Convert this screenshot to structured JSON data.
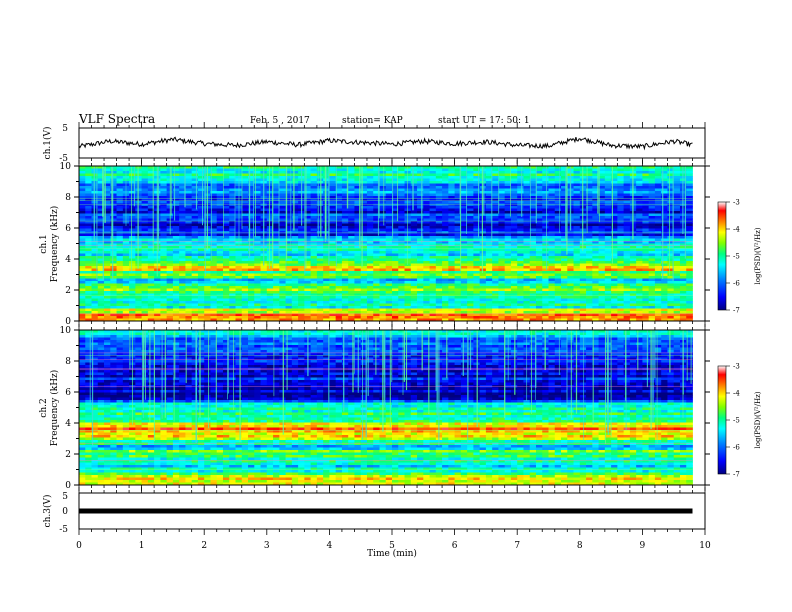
{
  "header": {
    "title": "VLF Spectra",
    "date": "Feb. 5 , 2017",
    "station": "station= KAP",
    "start": "start  UT =   17: 50: 1"
  },
  "colors": {
    "spectrogram_colormap": [
      "#000080",
      "#0000ff",
      "#0080ff",
      "#00ffff",
      "#00ff80",
      "#80ff00",
      "#ffff00",
      "#ff8000",
      "#ff0000",
      "#ffffff"
    ],
    "waveform": "#000000"
  },
  "chart_data": [
    {
      "type": "line",
      "id": "ch1-waveform",
      "ylabel": "ch.1(V)",
      "ylim": [
        -5,
        5
      ],
      "yticks": [
        "5",
        "-5"
      ],
      "xlim": [
        0,
        10
      ],
      "x": [
        0,
        0.5,
        1,
        1.5,
        2,
        2.5,
        3,
        3.5,
        4,
        4.5,
        5,
        5.5,
        6,
        6.5,
        7,
        7.5,
        8,
        8.5,
        9,
        9.5,
        9.8
      ],
      "y": [
        -1.2,
        0.6,
        -0.4,
        1.2,
        -0.2,
        -0.8,
        0.4,
        -0.6,
        0.8,
        0.2,
        -0.4,
        0.6,
        -0.2,
        0.4,
        -0.8,
        -1.0,
        1.6,
        -0.8,
        -1.2,
        0.6,
        -0.6
      ]
    },
    {
      "type": "heatmap",
      "id": "ch1-spectrogram",
      "ylabel_top": "ch.1",
      "ylabel": "Frequency (kHz)",
      "ylim": [
        0,
        10
      ],
      "yticks": [
        "0",
        "2",
        "4",
        "6",
        "8",
        "10"
      ],
      "xlim": [
        0,
        9.8
      ],
      "zlabel": "log(PSD)(V²/Hz)",
      "zlim": [
        -7,
        -3
      ],
      "zticks": [
        "-3",
        "-4",
        "-5",
        "-6",
        "-7"
      ],
      "band_profile": [
        {
          "f": 0.0,
          "z": -3.8
        },
        {
          "f": 0.5,
          "z": -4.0
        },
        {
          "f": 1.0,
          "z": -5.3
        },
        {
          "f": 1.5,
          "z": -5.0
        },
        {
          "f": 2.0,
          "z": -4.6
        },
        {
          "f": 2.5,
          "z": -5.6
        },
        {
          "f": 3.0,
          "z": -4.7
        },
        {
          "f": 3.5,
          "z": -4.0
        },
        {
          "f": 4.0,
          "z": -5.0
        },
        {
          "f": 4.5,
          "z": -5.3
        },
        {
          "f": 5.0,
          "z": -5.0
        },
        {
          "f": 5.5,
          "z": -6.3
        },
        {
          "f": 6.0,
          "z": -6.8
        },
        {
          "f": 6.5,
          "z": -6.2
        },
        {
          "f": 7.0,
          "z": -6.5
        },
        {
          "f": 7.5,
          "z": -6.6
        },
        {
          "f": 8.0,
          "z": -6.2
        },
        {
          "f": 8.5,
          "z": -6.0
        },
        {
          "f": 9.0,
          "z": -5.6
        },
        {
          "f": 9.5,
          "z": -5.2
        },
        {
          "f": 10.0,
          "z": -5.0
        }
      ]
    },
    {
      "type": "heatmap",
      "id": "ch2-spectrogram",
      "ylabel_top": "ch.2",
      "ylabel": "Frequency (kHz)",
      "ylim": [
        0,
        10
      ],
      "yticks": [
        "0",
        "2",
        "4",
        "6",
        "8",
        "10"
      ],
      "xlim": [
        0,
        9.8
      ],
      "zlabel": "log(PSD)(V²/Hz)",
      "zlim": [
        -7,
        -3
      ],
      "zticks": [
        "-3",
        "-4",
        "-5",
        "-6",
        "-7"
      ],
      "band_profile": [
        {
          "f": 0.0,
          "z": -3.8
        },
        {
          "f": 0.5,
          "z": -4.2
        },
        {
          "f": 1.0,
          "z": -5.2
        },
        {
          "f": 1.5,
          "z": -5.3
        },
        {
          "f": 2.0,
          "z": -4.6
        },
        {
          "f": 2.5,
          "z": -5.6
        },
        {
          "f": 3.0,
          "z": -4.3
        },
        {
          "f": 3.5,
          "z": -3.8
        },
        {
          "f": 4.0,
          "z": -4.5
        },
        {
          "f": 4.5,
          "z": -5.2
        },
        {
          "f": 5.0,
          "z": -5.0
        },
        {
          "f": 5.5,
          "z": -6.3
        },
        {
          "f": 6.0,
          "z": -6.7
        },
        {
          "f": 6.5,
          "z": -6.3
        },
        {
          "f": 7.0,
          "z": -6.6
        },
        {
          "f": 7.5,
          "z": -6.4
        },
        {
          "f": 8.0,
          "z": -6.5
        },
        {
          "f": 8.5,
          "z": -6.2
        },
        {
          "f": 9.0,
          "z": -6.0
        },
        {
          "f": 9.5,
          "z": -5.7
        },
        {
          "f": 10.0,
          "z": -5.5
        }
      ]
    },
    {
      "type": "line",
      "id": "ch3-waveform",
      "ylabel": "ch.3(V)",
      "ylim": [
        -5,
        5
      ],
      "yticks": [
        "5",
        "0",
        "-5"
      ],
      "xlim": [
        0,
        10
      ],
      "x": [
        0,
        9.8
      ],
      "y": [
        0,
        0
      ]
    }
  ],
  "xaxis": {
    "label": "Time (min)",
    "ticks": [
      "0",
      "1",
      "2",
      "3",
      "4",
      "5",
      "6",
      "7",
      "8",
      "9",
      "10"
    ]
  }
}
